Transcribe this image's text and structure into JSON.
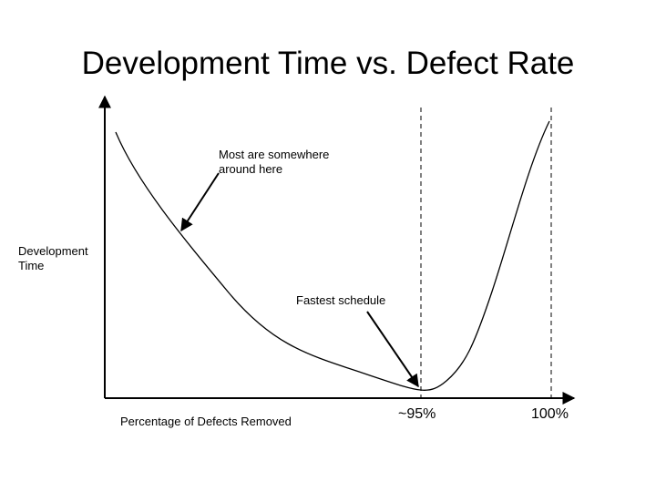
{
  "title": "Development Time vs. Defect Rate",
  "y_axis_label": "Development Time",
  "x_axis_label": "Percentage of Defects Removed",
  "annotations": {
    "typical": "Most are somewhere around here",
    "fastest": "Fastest schedule"
  },
  "markers": {
    "optimum": "~95%",
    "full": "100%"
  }
}
